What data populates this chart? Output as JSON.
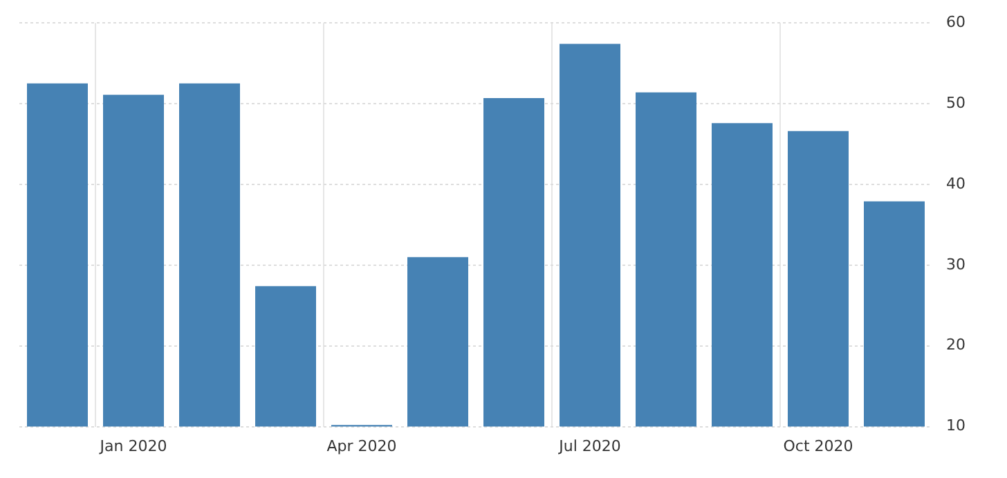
{
  "chart_data": {
    "type": "bar",
    "categories": [
      null,
      "Jan 2020",
      null,
      null,
      "Apr 2020",
      null,
      null,
      "Jul 2020",
      null,
      null,
      "Oct 2020",
      null
    ],
    "values": [
      52.5,
      51.1,
      52.5,
      27.4,
      10.2,
      31.0,
      50.7,
      57.4,
      51.4,
      47.6,
      46.6,
      37.9
    ],
    "color": "#4682b4",
    "ylim": [
      10,
      60
    ],
    "yticks": [
      10,
      20,
      30,
      40,
      50,
      60
    ],
    "grid": true
  }
}
